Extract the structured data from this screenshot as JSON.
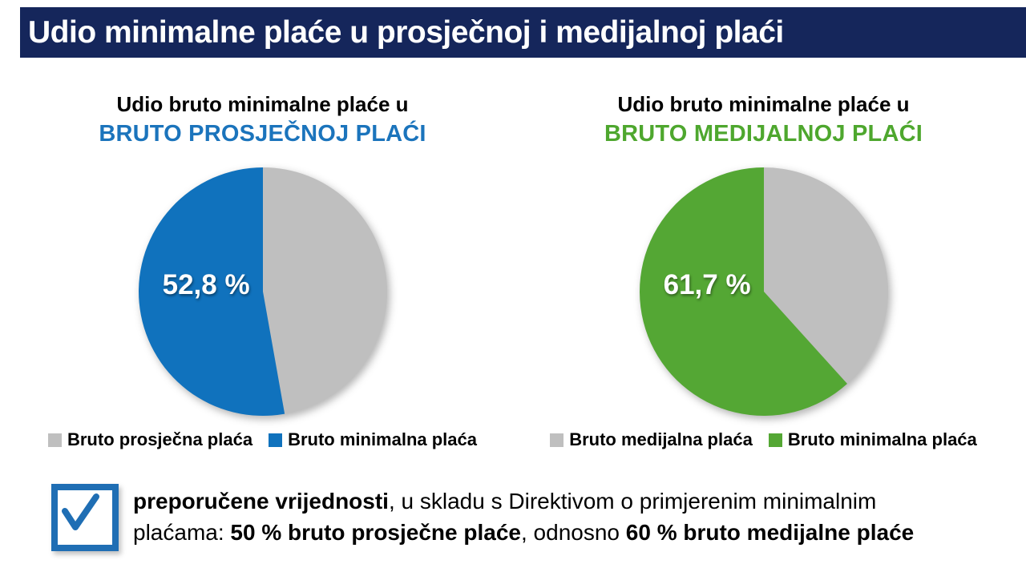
{
  "header": {
    "title": "Udio minimalne plaće u prosječnoj i medijalnoj plaći",
    "bg_color": "#15265B"
  },
  "chart_data": [
    {
      "type": "pie",
      "title": "Udio bruto minimalne plaće u",
      "subtitle": "BRUTO PROSJEČNOJ PLAĆI",
      "subtitle_color": "#1B74BC",
      "slices": [
        {
          "label": "Bruto prosječna plaća",
          "value": 47.2,
          "color": "#BFBFBF"
        },
        {
          "label": "Bruto minimalna plaća",
          "value": 52.8,
          "color": "#1072BD"
        }
      ],
      "data_label": "52,8 %",
      "start_angle_deg": 0,
      "direction": "clockwise",
      "legend_position": "bottom"
    },
    {
      "type": "pie",
      "title": "Udio bruto minimalne plaće u",
      "subtitle": "BRUTO MEDIJALNOJ PLAĆI",
      "subtitle_color": "#4EA72E",
      "slices": [
        {
          "label": "Bruto medijalna plaća",
          "value": 38.3,
          "color": "#BFBFBF"
        },
        {
          "label": "Bruto minimalna plaća",
          "value": 61.7,
          "color": "#54A734"
        }
      ],
      "data_label": "61,7 %",
      "start_angle_deg": 0,
      "direction": "clockwise",
      "legend_position": "bottom"
    }
  ],
  "note": {
    "checkbox_color": "#1F6EB4",
    "lines": [
      [
        {
          "text": "preporučene vrijednosti",
          "bold": true
        },
        {
          "text": ", u skladu s Direktivom o primjerenim minimalnim",
          "bold": false
        }
      ],
      [
        {
          "text": "plaćama: ",
          "bold": false
        },
        {
          "text": "50 % bruto prosječne plaće",
          "bold": true
        },
        {
          "text": ", odnosno ",
          "bold": false
        },
        {
          "text": "60 % bruto medijalne plaće",
          "bold": true
        }
      ]
    ]
  }
}
